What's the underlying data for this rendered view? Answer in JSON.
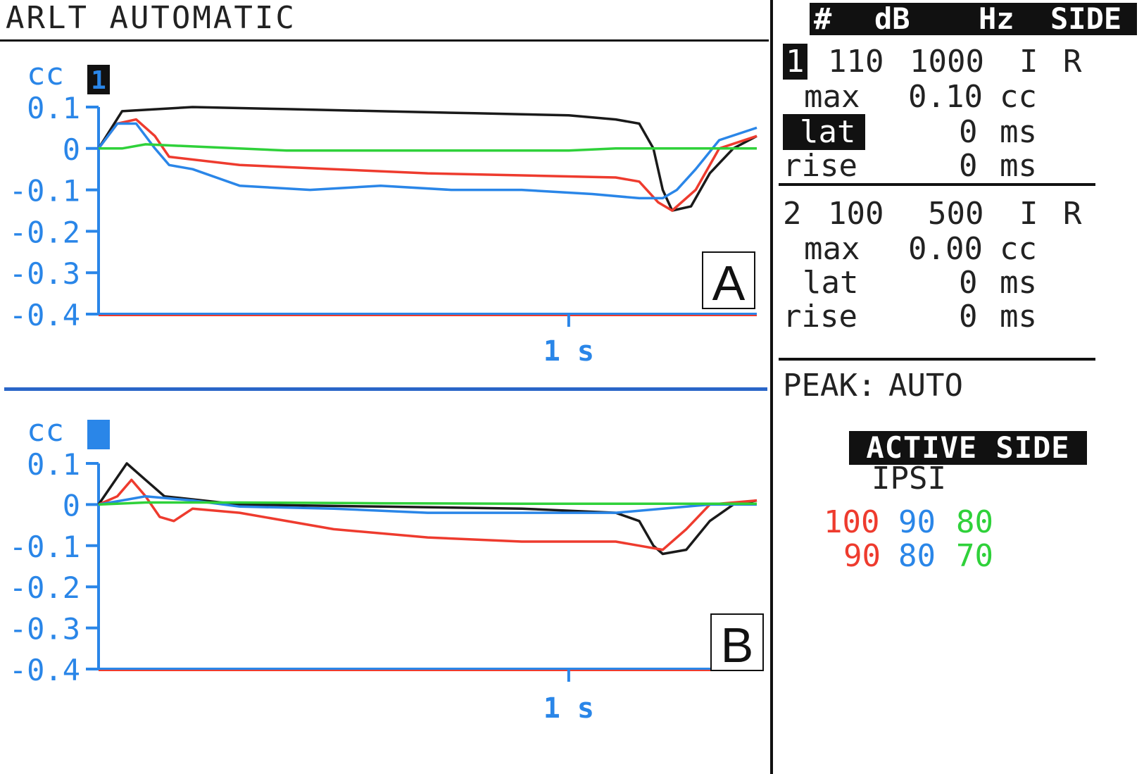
{
  "screen": {
    "title": "ARLT AUTOMATIC"
  },
  "table_header": {
    "num": "#",
    "db": "dB",
    "hz": "Hz",
    "side": "SIDE"
  },
  "measurements": [
    {
      "index": "1",
      "db": "110",
      "hz": "1000",
      "side_a": "I",
      "side_b": "R",
      "max_label": "max",
      "max_value": "0.10",
      "max_unit": "cc",
      "lat_label": "lat",
      "lat_value": "0",
      "lat_unit": "ms",
      "rise_label": "rise",
      "rise_value": "0",
      "rise_unit": "ms"
    },
    {
      "index": "2",
      "db": "100",
      "hz": "500",
      "side_a": "I",
      "side_b": "R",
      "max_label": "max",
      "max_value": "0.00",
      "max_unit": "cc",
      "lat_label": "lat",
      "lat_value": "0",
      "lat_unit": "ms",
      "rise_label": "rise",
      "rise_value": "0",
      "rise_unit": "ms"
    }
  ],
  "peak": {
    "label": "PEAK:",
    "value": "AUTO"
  },
  "active_side": {
    "label": "ACTIVE SIDE",
    "value": "IPSI"
  },
  "levels": {
    "row1": [
      "100",
      "90",
      "80"
    ],
    "row2": [
      "90",
      "80",
      "70"
    ]
  },
  "colors": {
    "black": "#1a1a1a",
    "red": "#ee3b2e",
    "blue": "#2a86e8",
    "green": "#2fd13a",
    "axis": "#2a86e8"
  },
  "chart_data": [
    {
      "type": "line",
      "panel_label": "A",
      "unit_label": "cc",
      "channel_badge": "1",
      "ylim": [
        -0.4,
        0.1
      ],
      "yticks": [
        "0.1",
        "0",
        "-0.1",
        "-0.2",
        "-0.3",
        "-0.4"
      ],
      "xlim": [
        0,
        1.4
      ],
      "xtick_value": 1.0,
      "xtick_label": "1 s",
      "series": [
        {
          "color": "black",
          "points": [
            [
              0,
              0
            ],
            [
              0.05,
              0.09
            ],
            [
              0.2,
              0.1
            ],
            [
              0.4,
              0.095
            ],
            [
              0.6,
              0.09
            ],
            [
              0.8,
              0.085
            ],
            [
              1.0,
              0.08
            ],
            [
              1.1,
              0.07
            ],
            [
              1.15,
              0.06
            ],
            [
              1.18,
              0.0
            ],
            [
              1.2,
              -0.1
            ],
            [
              1.22,
              -0.15
            ],
            [
              1.26,
              -0.14
            ],
            [
              1.3,
              -0.06
            ],
            [
              1.35,
              0.0
            ],
            [
              1.4,
              0.03
            ]
          ]
        },
        {
          "color": "red",
          "points": [
            [
              0,
              0
            ],
            [
              0.04,
              0.06
            ],
            [
              0.08,
              0.07
            ],
            [
              0.12,
              0.03
            ],
            [
              0.15,
              -0.02
            ],
            [
              0.3,
              -0.04
            ],
            [
              0.5,
              -0.05
            ],
            [
              0.7,
              -0.06
            ],
            [
              0.9,
              -0.065
            ],
            [
              1.1,
              -0.07
            ],
            [
              1.15,
              -0.08
            ],
            [
              1.19,
              -0.13
            ],
            [
              1.22,
              -0.15
            ],
            [
              1.27,
              -0.1
            ],
            [
              1.32,
              0.0
            ],
            [
              1.4,
              0.03
            ]
          ]
        },
        {
          "color": "blue",
          "points": [
            [
              0,
              0
            ],
            [
              0.04,
              0.06
            ],
            [
              0.08,
              0.06
            ],
            [
              0.12,
              0.0
            ],
            [
              0.15,
              -0.04
            ],
            [
              0.2,
              -0.05
            ],
            [
              0.3,
              -0.09
            ],
            [
              0.45,
              -0.1
            ],
            [
              0.6,
              -0.09
            ],
            [
              0.75,
              -0.1
            ],
            [
              0.9,
              -0.1
            ],
            [
              1.05,
              -0.11
            ],
            [
              1.15,
              -0.12
            ],
            [
              1.2,
              -0.12
            ],
            [
              1.23,
              -0.1
            ],
            [
              1.27,
              -0.05
            ],
            [
              1.32,
              0.02
            ],
            [
              1.4,
              0.05
            ]
          ]
        },
        {
          "color": "green",
          "points": [
            [
              0,
              0
            ],
            [
              0.05,
              0.0
            ],
            [
              0.1,
              0.01
            ],
            [
              0.2,
              0.005
            ],
            [
              0.4,
              -0.005
            ],
            [
              0.6,
              -0.005
            ],
            [
              0.8,
              -0.005
            ],
            [
              1.0,
              -0.005
            ],
            [
              1.1,
              0.0
            ],
            [
              1.2,
              0.0
            ],
            [
              1.3,
              0.0
            ],
            [
              1.4,
              0.0
            ]
          ]
        }
      ]
    },
    {
      "type": "line",
      "panel_label": "B",
      "unit_label": "cc",
      "channel_badge": "",
      "ylim": [
        -0.4,
        0.1
      ],
      "yticks": [
        "0.1",
        "0",
        "-0.1",
        "-0.2",
        "-0.3",
        "-0.4"
      ],
      "xlim": [
        0,
        1.4
      ],
      "xtick_value": 1.0,
      "xtick_label": "1 s",
      "series": [
        {
          "color": "black",
          "points": [
            [
              0,
              0
            ],
            [
              0.03,
              0.05
            ],
            [
              0.06,
              0.1
            ],
            [
              0.1,
              0.06
            ],
            [
              0.14,
              0.02
            ],
            [
              0.3,
              0.0
            ],
            [
              0.6,
              -0.005
            ],
            [
              0.9,
              -0.01
            ],
            [
              1.1,
              -0.02
            ],
            [
              1.15,
              -0.04
            ],
            [
              1.18,
              -0.1
            ],
            [
              1.2,
              -0.12
            ],
            [
              1.25,
              -0.11
            ],
            [
              1.3,
              -0.04
            ],
            [
              1.35,
              0.0
            ],
            [
              1.4,
              0.01
            ]
          ]
        },
        {
          "color": "red",
          "points": [
            [
              0,
              0
            ],
            [
              0.04,
              0.02
            ],
            [
              0.07,
              0.06
            ],
            [
              0.1,
              0.02
            ],
            [
              0.13,
              -0.03
            ],
            [
              0.16,
              -0.04
            ],
            [
              0.2,
              -0.01
            ],
            [
              0.3,
              -0.02
            ],
            [
              0.5,
              -0.06
            ],
            [
              0.7,
              -0.08
            ],
            [
              0.9,
              -0.09
            ],
            [
              1.1,
              -0.09
            ],
            [
              1.15,
              -0.1
            ],
            [
              1.2,
              -0.11
            ],
            [
              1.25,
              -0.06
            ],
            [
              1.3,
              0.0
            ],
            [
              1.4,
              0.01
            ]
          ]
        },
        {
          "color": "blue",
          "points": [
            [
              0,
              0
            ],
            [
              0.05,
              0.01
            ],
            [
              0.1,
              0.02
            ],
            [
              0.2,
              0.01
            ],
            [
              0.3,
              -0.005
            ],
            [
              0.5,
              -0.01
            ],
            [
              0.7,
              -0.02
            ],
            [
              0.9,
              -0.02
            ],
            [
              1.1,
              -0.02
            ],
            [
              1.2,
              -0.01
            ],
            [
              1.3,
              0.0
            ],
            [
              1.4,
              0.0
            ]
          ]
        },
        {
          "color": "green",
          "points": [
            [
              0,
              0
            ],
            [
              0.1,
              0.005
            ],
            [
              0.3,
              0.005
            ],
            [
              0.6,
              0.003
            ],
            [
              0.9,
              0.002
            ],
            [
              1.2,
              0.002
            ],
            [
              1.4,
              0.002
            ]
          ]
        }
      ]
    }
  ]
}
